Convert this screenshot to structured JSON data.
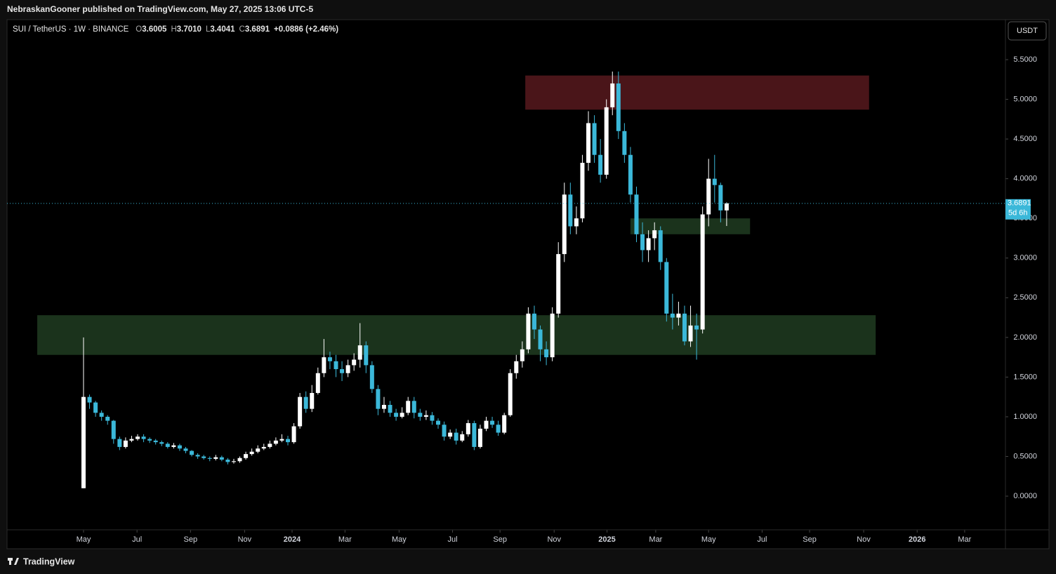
{
  "header": {
    "published": "NebraskanGooner published on TradingView.com, May 27, 2025 13:06 UTC-5"
  },
  "footer": {
    "brand": "TradingView"
  },
  "chart_data": {
    "type": "candlestick",
    "title": "SUI / TetherUS · 1W · BINANCE",
    "legend_labels": [
      "O",
      "H",
      "L",
      "C"
    ],
    "legend_values": [
      "3.6005",
      "3.7010",
      "3.4041",
      "3.6891"
    ],
    "change": "+0.0886 (+2.46%)",
    "currency": "USDT",
    "countdown": "5d 6h",
    "up_color": "#ffffff",
    "down_color": "#3bb8d9",
    "xlim": [
      -12.73,
      153.39
    ],
    "xticks": [
      {
        "value": 0,
        "label": "May"
      },
      {
        "value": 8.9,
        "label": "Jul"
      },
      {
        "value": 17.8,
        "label": "Sep"
      },
      {
        "value": 26.8,
        "label": "Nov"
      },
      {
        "value": 34.7,
        "label": "2024"
      },
      {
        "value": 43.5,
        "label": "Mar"
      },
      {
        "value": 52.5,
        "label": "May"
      },
      {
        "value": 61.4,
        "label": "Jul"
      },
      {
        "value": 69.3,
        "label": "Sep"
      },
      {
        "value": 78.3,
        "label": "Nov"
      },
      {
        "value": 87.1,
        "label": "2025"
      },
      {
        "value": 95.2,
        "label": "Mar"
      },
      {
        "value": 104.0,
        "label": "May"
      },
      {
        "value": 112.9,
        "label": "Jul"
      },
      {
        "value": 120.8,
        "label": "Sep"
      },
      {
        "value": 129.8,
        "label": "Nov"
      },
      {
        "value": 138.7,
        "label": "2026"
      },
      {
        "value": 146.6,
        "label": "Mar"
      }
    ],
    "ylim": [
      -0.424,
      6.004
    ],
    "yticks": [
      {
        "value": 0,
        "label": "0.0000"
      },
      {
        "value": 0.5,
        "label": "0.5000"
      },
      {
        "value": 1,
        "label": "1.0000"
      },
      {
        "value": 1.5,
        "label": "1.5000"
      },
      {
        "value": 2,
        "label": "2.0000"
      },
      {
        "value": 2.5,
        "label": "2.5000"
      },
      {
        "value": 3,
        "label": "3.0000"
      },
      {
        "value": 3.5,
        "label": "3.5000"
      },
      {
        "value": 4,
        "label": "4.0000"
      },
      {
        "value": 4.5,
        "label": "4.5000"
      },
      {
        "value": 5,
        "label": "5.0000"
      },
      {
        "value": 5.5,
        "label": "5.5000"
      }
    ],
    "zones": [
      {
        "color": "#4a1519",
        "ylim": [
          4.87,
          5.3
        ],
        "xlim": [
          73.5,
          130.7
        ]
      },
      {
        "color": "#1b331c",
        "ylim": [
          1.78,
          2.28
        ],
        "xlim": [
          -7.7,
          131.8
        ]
      },
      {
        "color": "#1b331c",
        "ylim": [
          3.3,
          3.5
        ],
        "xlim": [
          91.0,
          110.9
        ]
      }
    ],
    "open": [
      0.1,
      1.25,
      1.18,
      1.05,
      1.0,
      0.95,
      0.72,
      0.62,
      0.7,
      0.72,
      0.75,
      0.72,
      0.7,
      0.68,
      0.66,
      0.62,
      0.64,
      0.6,
      0.57,
      0.52,
      0.5,
      0.48,
      0.47,
      0.49,
      0.46,
      0.43,
      0.44,
      0.48,
      0.53,
      0.56,
      0.6,
      0.62,
      0.66,
      0.7,
      0.72,
      0.68,
      0.88,
      1.25,
      1.1,
      1.3,
      1.55,
      1.75,
      1.7,
      1.6,
      1.55,
      1.65,
      1.72,
      1.9,
      1.65,
      1.35,
      1.1,
      1.15,
      1.05,
      1.0,
      1.05,
      1.2,
      1.05,
      1.0,
      1.02,
      0.95,
      0.9,
      0.75,
      0.8,
      0.7,
      0.78,
      0.92,
      0.62,
      0.85,
      0.95,
      0.9,
      0.8,
      1.02,
      1.55,
      1.7,
      1.85,
      2.3,
      2.1,
      1.85,
      1.75,
      2.3,
      3.05,
      3.8,
      3.4,
      3.5,
      4.2,
      4.7,
      4.3,
      4.05,
      4.9,
      5.2,
      4.6,
      4.3,
      3.8,
      3.3,
      3.1,
      3.25,
      3.35,
      2.95,
      2.3,
      2.25,
      2.3,
      1.95,
      2.15,
      2.1,
      3.55,
      4.0,
      3.92,
      3.6005
    ],
    "high": [
      2.0,
      1.28,
      1.2,
      1.08,
      1.02,
      0.96,
      0.75,
      0.74,
      0.76,
      0.78,
      0.78,
      0.74,
      0.72,
      0.7,
      0.68,
      0.67,
      0.66,
      0.62,
      0.58,
      0.54,
      0.52,
      0.5,
      0.52,
      0.51,
      0.48,
      0.47,
      0.5,
      0.56,
      0.6,
      0.64,
      0.66,
      0.7,
      0.74,
      0.78,
      0.76,
      0.92,
      1.3,
      1.32,
      1.4,
      1.62,
      1.98,
      1.82,
      1.78,
      1.7,
      1.72,
      1.8,
      2.18,
      1.95,
      1.7,
      1.4,
      1.25,
      1.2,
      1.1,
      1.12,
      1.25,
      1.25,
      1.1,
      1.08,
      1.06,
      0.98,
      0.94,
      0.84,
      0.85,
      0.82,
      0.96,
      0.95,
      0.9,
      1.0,
      1.0,
      0.95,
      1.05,
      1.6,
      1.78,
      1.95,
      2.38,
      2.4,
      2.15,
      1.95,
      2.38,
      3.2,
      3.95,
      3.95,
      3.65,
      4.3,
      4.85,
      4.8,
      4.5,
      5.0,
      5.35,
      5.35,
      4.7,
      4.4,
      3.9,
      3.45,
      3.35,
      3.45,
      3.4,
      3.0,
      2.55,
      2.45,
      2.4,
      2.4,
      2.3,
      3.65,
      4.25,
      4.3,
      3.95,
      3.701
    ],
    "low": [
      0.1,
      1.1,
      1.0,
      0.95,
      0.9,
      0.66,
      0.58,
      0.6,
      0.68,
      0.7,
      0.68,
      0.67,
      0.65,
      0.63,
      0.6,
      0.6,
      0.57,
      0.54,
      0.5,
      0.47,
      0.46,
      0.44,
      0.45,
      0.44,
      0.4,
      0.41,
      0.42,
      0.46,
      0.51,
      0.54,
      0.58,
      0.6,
      0.64,
      0.68,
      0.64,
      0.66,
      0.85,
      1.05,
      1.06,
      1.28,
      1.5,
      1.6,
      1.5,
      1.45,
      1.5,
      1.58,
      1.62,
      1.55,
      1.3,
      1.02,
      1.05,
      1.0,
      0.95,
      0.98,
      1.02,
      0.98,
      0.95,
      0.96,
      0.9,
      0.85,
      0.7,
      0.72,
      0.65,
      0.68,
      0.75,
      0.58,
      0.6,
      0.82,
      0.86,
      0.76,
      0.78,
      1.0,
      1.48,
      1.62,
      1.8,
      1.98,
      1.7,
      1.65,
      1.7,
      2.25,
      2.95,
      3.3,
      3.3,
      3.45,
      4.1,
      4.2,
      3.95,
      4.0,
      4.8,
      4.5,
      4.2,
      3.7,
      3.2,
      2.95,
      2.95,
      3.1,
      2.85,
      2.2,
      2.1,
      2.15,
      1.9,
      1.88,
      1.72,
      2.05,
      3.4,
      3.7,
      3.45,
      3.4041
    ],
    "close": [
      1.25,
      1.18,
      1.05,
      1.0,
      0.95,
      0.72,
      0.62,
      0.7,
      0.72,
      0.75,
      0.72,
      0.7,
      0.68,
      0.66,
      0.62,
      0.64,
      0.6,
      0.57,
      0.52,
      0.5,
      0.48,
      0.47,
      0.49,
      0.46,
      0.43,
      0.44,
      0.48,
      0.53,
      0.56,
      0.6,
      0.62,
      0.66,
      0.7,
      0.72,
      0.68,
      0.88,
      1.25,
      1.1,
      1.3,
      1.55,
      1.75,
      1.7,
      1.6,
      1.55,
      1.65,
      1.72,
      1.9,
      1.65,
      1.35,
      1.1,
      1.15,
      1.05,
      1.0,
      1.05,
      1.2,
      1.05,
      1.0,
      1.02,
      0.95,
      0.9,
      0.75,
      0.8,
      0.7,
      0.78,
      0.92,
      0.62,
      0.85,
      0.95,
      0.9,
      0.8,
      1.02,
      1.55,
      1.7,
      1.85,
      2.3,
      2.1,
      1.85,
      1.75,
      2.3,
      3.05,
      3.8,
      3.4,
      3.5,
      4.2,
      4.7,
      4.3,
      4.05,
      4.9,
      5.2,
      4.6,
      4.3,
      3.8,
      3.3,
      3.1,
      3.25,
      3.35,
      2.95,
      2.3,
      2.25,
      2.3,
      1.95,
      2.15,
      2.1,
      3.55,
      4.0,
      3.92,
      3.6005,
      3.6891
    ]
  }
}
